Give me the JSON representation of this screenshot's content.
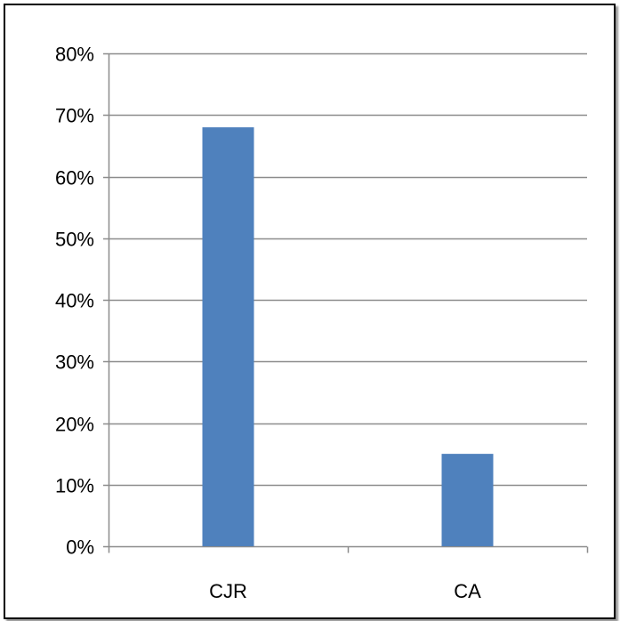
{
  "chart_data": {
    "type": "bar",
    "title": "",
    "xlabel": "",
    "ylabel": "",
    "categories": [
      "CJR",
      "CA"
    ],
    "values": [
      0.68,
      0.15
    ],
    "ylim": [
      0,
      0.8
    ],
    "yticks": [
      0,
      0.1,
      0.2,
      0.3,
      0.4,
      0.5,
      0.6,
      0.7,
      0.8
    ],
    "ytick_labels": [
      "0%",
      "10%",
      "20%",
      "30%",
      "40%",
      "50%",
      "60%",
      "70%",
      "80%"
    ],
    "grid": true,
    "legend": false,
    "colors": {
      "bar": "#4F81BD",
      "grid": "#8c8c8c",
      "axis": "#8c8c8c",
      "frame": "#000000"
    }
  }
}
